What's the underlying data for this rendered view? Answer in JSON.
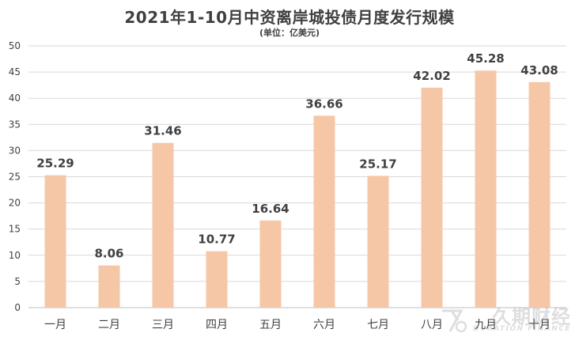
{
  "chart_data": {
    "type": "bar",
    "title": "2021年1-10月中资离岸城投债月度发行规模",
    "subtitle": "(单位：亿美元)",
    "categories": [
      "一月",
      "二月",
      "三月",
      "四月",
      "五月",
      "六月",
      "七月",
      "八月",
      "九月",
      "十月"
    ],
    "values": [
      25.29,
      8.06,
      31.46,
      10.77,
      16.64,
      36.66,
      25.17,
      42.02,
      45.28,
      43.08
    ],
    "value_labels": [
      "25.29",
      "8.06",
      "31.46",
      "10.77",
      "16.64",
      "36.66",
      "25.17",
      "42.02",
      "45.28",
      "43.08"
    ],
    "y_ticks": [
      "0",
      "5",
      "10",
      "15",
      "20",
      "25",
      "30",
      "35",
      "40",
      "45",
      "50"
    ],
    "ylim": [
      0,
      50
    ],
    "grid": true,
    "legend": "none",
    "colors": {
      "bar": "#F6C7A6",
      "grid": "#D9D9D9",
      "axis": "#BFBFBF",
      "text": "#404040"
    }
  },
  "watermark": {
    "cn": "久期财经",
    "en": "DURATION FINANCE"
  }
}
